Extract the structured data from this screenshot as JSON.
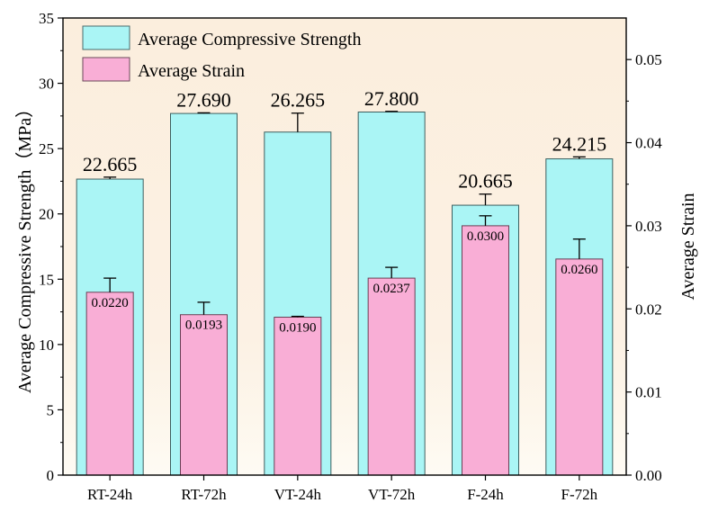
{
  "chart_data": {
    "type": "bar",
    "title": "",
    "categories": [
      "RT-24h",
      "RT-72h",
      "VT-24h",
      "VT-72h",
      "F-24h",
      "F-72h"
    ],
    "xlabel": "",
    "ylabel": "Average Compressive Strength（MPa）",
    "ylabel_right": "Average Strain",
    "ylim": [
      0,
      35
    ],
    "ylim_right": [
      0,
      0.055
    ],
    "yticks": [
      "0",
      "5",
      "10",
      "15",
      "20",
      "25",
      "30",
      "35"
    ],
    "yticks_right": [
      "0.00",
      "0.01",
      "0.02",
      "0.03",
      "0.04",
      "0.05"
    ],
    "series": [
      {
        "name": "Average Compressive Strength",
        "axis": "left",
        "color": "#aaf5f5",
        "values": [
          22.665,
          27.69,
          26.265,
          27.8,
          20.665,
          24.215
        ],
        "errors": [
          0.15,
          0.05,
          1.45,
          0.05,
          0.85,
          0.15
        ],
        "labels": [
          "22.665",
          "27.690",
          "26.265",
          "27.800",
          "20.665",
          "24.215"
        ]
      },
      {
        "name": "Average Strain",
        "axis": "right",
        "color": "#f9aed6",
        "values": [
          0.022,
          0.0193,
          0.019,
          0.0237,
          0.03,
          0.026
        ],
        "errors": [
          0.0017,
          0.0015,
          0.0001,
          0.0013,
          0.0012,
          0.0024
        ],
        "labels": [
          "0.0220",
          "0.0193",
          "0.0190",
          "0.0237",
          "0.0300",
          "0.0260"
        ]
      }
    ],
    "legend": "top-left",
    "background": "#fbeedd"
  }
}
